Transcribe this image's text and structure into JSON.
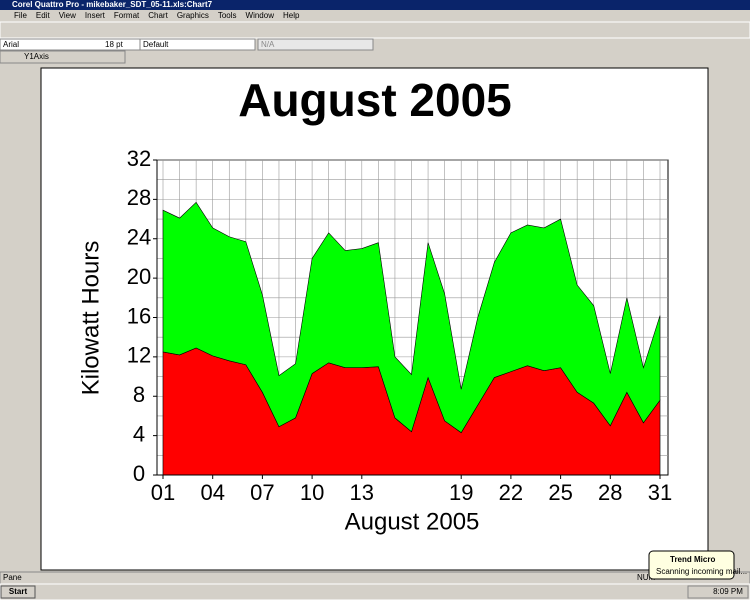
{
  "window": {
    "title": "Corel Quattro Pro - mikebaker_SDT_05-11.xls:Chart7",
    "menu": [
      "File",
      "Edit",
      "View",
      "Insert",
      "Format",
      "Chart",
      "Graphics",
      "Tools",
      "Window",
      "Help"
    ]
  },
  "property_bar": {
    "font": "Arial",
    "size": "18 pt",
    "style": "Default",
    "field": "N/A"
  },
  "selection": "Y1Axis",
  "chart_data": {
    "type": "stacked_area",
    "title": "August 2005",
    "x_label": "August 2005",
    "y_label": "Kilowatt Hours",
    "x": [
      1,
      2,
      3,
      4,
      5,
      6,
      7,
      8,
      9,
      10,
      11,
      12,
      13,
      14,
      15,
      16,
      17,
      18,
      19,
      20,
      21,
      22,
      23,
      24,
      25,
      26,
      27,
      28,
      29,
      30,
      31
    ],
    "series": [
      {
        "color": "#ff0000",
        "values": [
          12.5,
          12.2,
          12.9,
          12.1,
          11.6,
          11.2,
          8.4,
          4.9,
          5.8,
          10.3,
          11.4,
          10.9,
          10.9,
          11.0,
          5.8,
          4.4,
          9.9,
          5.5,
          4.3,
          7.1,
          9.9,
          10.5,
          11.1,
          10.6,
          10.9,
          8.4,
          7.3,
          5.0,
          8.4,
          5.3,
          7.6
        ]
      },
      {
        "color": "#00ff00",
        "values": [
          14.4,
          13.9,
          14.8,
          13.0,
          12.6,
          12.5,
          9.9,
          5.2,
          5.5,
          11.7,
          13.2,
          11.9,
          12.1,
          12.6,
          6.2,
          5.8,
          13.7,
          12.9,
          4.4,
          8.9,
          11.7,
          14.1,
          14.3,
          14.5,
          15.1,
          10.9,
          9.9,
          5.3,
          9.6,
          5.6,
          8.6
        ]
      }
    ],
    "xlim": [
      1,
      31
    ],
    "xticks": [
      {
        "value": 1,
        "label": "01"
      },
      {
        "value": 4,
        "label": "04"
      },
      {
        "value": 7,
        "label": "07"
      },
      10,
      13,
      19,
      22,
      25,
      28,
      31
    ],
    "ylim": [
      0,
      32
    ],
    "yticks": [
      0,
      4,
      8,
      12,
      16,
      20,
      24,
      28,
      32
    ],
    "yminorticks": [
      2,
      6,
      10,
      14,
      18,
      22,
      26,
      30
    ],
    "grid": true
  },
  "status": {
    "pane": "Pane",
    "num": "NUM"
  },
  "taskbar": {
    "start": "Start",
    "clock": "8:09 PM"
  },
  "notification": {
    "title": "Trend Micro",
    "text": "Scanning incoming mail..."
  }
}
